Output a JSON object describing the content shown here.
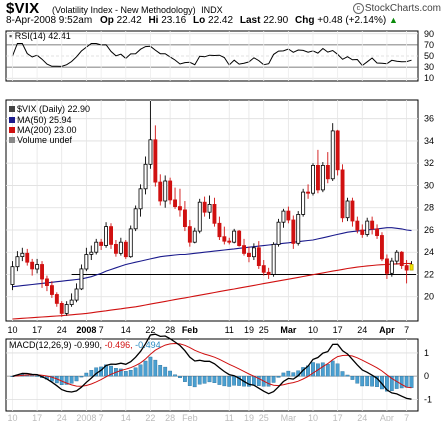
{
  "header": {
    "symbol": "$VIX",
    "name": "(Volatility Index - New Methodology)",
    "exchange": "INDX",
    "copyright": "StockCharts.com",
    "date": "8-Apr-2008 9:52am",
    "open_label": "Op",
    "open": "22.42",
    "high_label": "Hi",
    "high": "23.16",
    "low_label": "Lo",
    "low": "22.42",
    "last_label": "Last",
    "last": "22.90",
    "chg_label": "Chg",
    "chg": "+0.48 (+2.14%)",
    "up_arrow": "▲"
  },
  "rsi_panel": {
    "label": "RSI(14)",
    "value": "42.41",
    "ticks": [
      "90",
      "70",
      "50",
      "30",
      "10"
    ]
  },
  "price_panel": {
    "legend_title": "$VIX (Daily)",
    "legend_value": "22.90",
    "ma50_label": "MA(50)",
    "ma50_value": "25.94",
    "ma200_label": "MA(200)",
    "ma200_value": "23.00",
    "volume_label": "Volume undef",
    "ticks": [
      "36",
      "34",
      "32",
      "30",
      "28",
      "26",
      "24",
      "22",
      "20"
    ]
  },
  "macd_panel": {
    "label": "MACD(12,26,9)",
    "macd": "-0.990",
    "signal": "-0.496",
    "histogram": "-0.494",
    "ticks": [
      "1",
      "0",
      "-1"
    ]
  },
  "x_axis": {
    "labels": [
      "10",
      "17",
      "24",
      "2008",
      "7",
      "14",
      "22",
      "28",
      "Feb",
      "11",
      "19",
      "25",
      "Mar",
      "10",
      "17",
      "24",
      "Apr",
      "7"
    ]
  },
  "colors": {
    "ma50": "#1a1a8c",
    "ma200": "#d01010",
    "candle_up": "#000000",
    "candle_down": "#d01010",
    "macd_line": "#000000",
    "signal_line": "#d01010",
    "histogram": "#4a9fd0",
    "grid": "#cccccc"
  },
  "chart_data": {
    "type": "candlestick",
    "y_range": [
      18,
      37.5
    ],
    "horizontal_line": 22,
    "dates": [
      "2007-12-10",
      "2007-12-11",
      "2007-12-12",
      "2007-12-13",
      "2007-12-14",
      "2007-12-17",
      "2007-12-18",
      "2007-12-19",
      "2007-12-20",
      "2007-12-21",
      "2007-12-24",
      "2007-12-26",
      "2007-12-27",
      "2007-12-28",
      "2007-12-31",
      "2008-01-02",
      "2008-01-03",
      "2008-01-04",
      "2008-01-07",
      "2008-01-08",
      "2008-01-09",
      "2008-01-10",
      "2008-01-11",
      "2008-01-14",
      "2008-01-15",
      "2008-01-16",
      "2008-01-17",
      "2008-01-18",
      "2008-01-22",
      "2008-01-23",
      "2008-01-24",
      "2008-01-25",
      "2008-01-28",
      "2008-01-29",
      "2008-01-30",
      "2008-01-31",
      "2008-02-01",
      "2008-02-04",
      "2008-02-05",
      "2008-02-06",
      "2008-02-07",
      "2008-02-08",
      "2008-02-11",
      "2008-02-12",
      "2008-02-13",
      "2008-02-14",
      "2008-02-15",
      "2008-02-19",
      "2008-02-20",
      "2008-02-21",
      "2008-02-22",
      "2008-02-25",
      "2008-02-26",
      "2008-02-27",
      "2008-02-28",
      "2008-02-29",
      "2008-03-03",
      "2008-03-04",
      "2008-03-05",
      "2008-03-06",
      "2008-03-07",
      "2008-03-10",
      "2008-03-11",
      "2008-03-12",
      "2008-03-13",
      "2008-03-14",
      "2008-03-17",
      "2008-03-18",
      "2008-03-19",
      "2008-03-20",
      "2008-03-24",
      "2008-03-25",
      "2008-03-26",
      "2008-03-27",
      "2008-03-28",
      "2008-03-31",
      "2008-04-01",
      "2008-04-02",
      "2008-04-03",
      "2008-04-04",
      "2008-04-07",
      "2008-04-08"
    ],
    "ohlc": [
      [
        21.1,
        23.2,
        20.6,
        22.7
      ],
      [
        22.7,
        24.1,
        22.3,
        23.6
      ],
      [
        23.6,
        24.4,
        23.2,
        23.9
      ],
      [
        23.9,
        24.3,
        22.8,
        23.1
      ],
      [
        23.1,
        23.4,
        21.9,
        22.5
      ],
      [
        22.5,
        23.4,
        22.1,
        22.9
      ],
      [
        22.9,
        23.2,
        20.8,
        21.6
      ],
      [
        21.6,
        21.9,
        20.5,
        21.0
      ],
      [
        21.0,
        21.4,
        19.9,
        20.2
      ],
      [
        20.2,
        20.4,
        19.1,
        19.4
      ],
      [
        19.4,
        19.6,
        18.2,
        18.5
      ],
      [
        18.5,
        19.6,
        18.3,
        19.3
      ],
      [
        19.3,
        20.3,
        19.1,
        19.7
      ],
      [
        19.7,
        21.2,
        19.5,
        20.7
      ],
      [
        20.7,
        22.9,
        20.6,
        22.5
      ],
      [
        22.5,
        24.4,
        22.3,
        23.8
      ],
      [
        23.8,
        24.6,
        23.3,
        24.0
      ],
      [
        24.0,
        25.2,
        23.8,
        24.9
      ],
      [
        24.9,
        25.2,
        24.2,
        24.6
      ],
      [
        24.6,
        26.7,
        24.4,
        26.3
      ],
      [
        26.3,
        26.6,
        24.3,
        24.7
      ],
      [
        24.7,
        25.1,
        23.6,
        23.9
      ],
      [
        23.9,
        25.3,
        23.7,
        24.9
      ],
      [
        24.9,
        25.1,
        23.4,
        23.6
      ],
      [
        23.6,
        26.4,
        23.5,
        26.1
      ],
      [
        26.1,
        28.2,
        25.9,
        27.9
      ],
      [
        27.9,
        30.1,
        27.2,
        29.7
      ],
      [
        29.7,
        32.6,
        29.2,
        31.9
      ],
      [
        31.9,
        37.6,
        31.5,
        34.1
      ],
      [
        34.1,
        35.4,
        29.9,
        30.3
      ],
      [
        30.3,
        31.0,
        28.2,
        28.6
      ],
      [
        28.6,
        30.9,
        28.0,
        30.4
      ],
      [
        30.4,
        30.7,
        28.3,
        28.7
      ],
      [
        28.7,
        29.8,
        27.9,
        28.1
      ],
      [
        28.1,
        29.7,
        27.2,
        27.8
      ],
      [
        27.8,
        28.6,
        25.9,
        26.3
      ],
      [
        26.3,
        26.9,
        24.5,
        24.9
      ],
      [
        24.9,
        26.2,
        24.8,
        25.9
      ],
      [
        25.9,
        28.8,
        25.7,
        28.5
      ],
      [
        28.5,
        29.0,
        27.2,
        27.6
      ],
      [
        27.6,
        29.1,
        27.0,
        28.3
      ],
      [
        28.3,
        28.9,
        26.3,
        26.6
      ],
      [
        26.6,
        27.2,
        25.1,
        25.4
      ],
      [
        25.4,
        26.3,
        24.7,
        25.0
      ],
      [
        25.0,
        25.3,
        24.7,
        24.9
      ],
      [
        24.9,
        26.1,
        24.8,
        25.9
      ],
      [
        25.9,
        26.0,
        24.5,
        24.6
      ],
      [
        24.6,
        25.2,
        23.7,
        23.9
      ],
      [
        23.9,
        24.5,
        23.1,
        23.6
      ],
      [
        23.6,
        24.8,
        23.3,
        24.4
      ],
      [
        24.4,
        25.0,
        22.5,
        22.8
      ],
      [
        22.8,
        23.3,
        21.9,
        22.2
      ],
      [
        22.2,
        22.6,
        21.6,
        22.0
      ],
      [
        22.0,
        24.9,
        21.8,
        24.7
      ],
      [
        24.7,
        27.0,
        24.5,
        26.7
      ],
      [
        26.7,
        27.9,
        26.2,
        27.7
      ],
      [
        27.7,
        28.1,
        26.6,
        26.9
      ],
      [
        26.9,
        27.3,
        24.3,
        24.8
      ],
      [
        24.8,
        27.7,
        24.6,
        27.4
      ],
      [
        27.4,
        29.7,
        27.2,
        29.4
      ],
      [
        29.4,
        30.1,
        28.8,
        29.3
      ],
      [
        29.3,
        32.0,
        29.1,
        31.8
      ],
      [
        31.8,
        33.2,
        29.3,
        29.6
      ],
      [
        29.6,
        32.1,
        29.4,
        31.8
      ],
      [
        31.8,
        33.0,
        30.2,
        30.6
      ],
      [
        30.6,
        35.6,
        30.4,
        34.9
      ],
      [
        34.9,
        35.0,
        30.9,
        31.4
      ],
      [
        31.4,
        31.9,
        26.7,
        27.1
      ],
      [
        27.1,
        28.9,
        26.8,
        28.6
      ],
      [
        28.6,
        28.9,
        26.3,
        26.8
      ],
      [
        26.8,
        27.2,
        25.7,
        26.0
      ],
      [
        26.0,
        26.5,
        25.3,
        25.6
      ],
      [
        25.6,
        27.1,
        25.4,
        26.8
      ],
      [
        26.8,
        27.2,
        25.6,
        26.1
      ],
      [
        26.1,
        26.5,
        25.2,
        25.5
      ],
      [
        25.5,
        25.8,
        23.2,
        23.4
      ],
      [
        23.4,
        23.8,
        21.6,
        22.1
      ],
      [
        22.1,
        23.5,
        21.8,
        23.2
      ],
      [
        23.2,
        24.2,
        22.9,
        24.0
      ],
      [
        24.0,
        24.1,
        22.5,
        22.8
      ],
      [
        22.8,
        23.3,
        21.2,
        22.4
      ],
      [
        22.4,
        23.2,
        22.4,
        22.9
      ]
    ],
    "series": [
      {
        "name": "MA(50)",
        "values": [
          20.9,
          20.95,
          21.0,
          21.05,
          21.1,
          21.15,
          21.2,
          21.25,
          21.3,
          21.35,
          21.4,
          21.45,
          21.5,
          21.55,
          21.6,
          21.7,
          21.8,
          21.95,
          22.1,
          22.3,
          22.45,
          22.6,
          22.75,
          22.9,
          23.0,
          23.1,
          23.2,
          23.3,
          23.4,
          23.5,
          23.6,
          23.65,
          23.7,
          23.75,
          23.8,
          23.8,
          23.85,
          23.9,
          23.95,
          24.0,
          24.05,
          24.1,
          24.15,
          24.2,
          24.25,
          24.3,
          24.35,
          24.4,
          24.45,
          24.5,
          24.55,
          24.6,
          24.65,
          24.7,
          24.75,
          24.8,
          24.85,
          24.9,
          24.95,
          25.0,
          25.05,
          25.1,
          25.2,
          25.3,
          25.4,
          25.5,
          25.6,
          25.7,
          25.8,
          25.85,
          25.9,
          25.95,
          26.0,
          26.05,
          26.1,
          26.15,
          26.2,
          26.2,
          26.15,
          26.1,
          26.0,
          25.94
        ]
      },
      {
        "name": "MA(200)",
        "values": [
          18.0,
          18.03,
          18.06,
          18.09,
          18.12,
          18.15,
          18.18,
          18.21,
          18.24,
          18.27,
          18.3,
          18.34,
          18.38,
          18.42,
          18.46,
          18.5,
          18.56,
          18.62,
          18.68,
          18.74,
          18.8,
          18.86,
          18.92,
          18.98,
          19.04,
          19.1,
          19.18,
          19.26,
          19.34,
          19.42,
          19.5,
          19.58,
          19.66,
          19.74,
          19.82,
          19.9,
          19.98,
          20.06,
          20.14,
          20.22,
          20.3,
          20.38,
          20.46,
          20.54,
          20.62,
          20.7,
          20.78,
          20.86,
          20.94,
          21.02,
          21.1,
          21.18,
          21.26,
          21.34,
          21.42,
          21.5,
          21.58,
          21.66,
          21.74,
          21.82,
          21.9,
          21.98,
          22.06,
          22.14,
          22.22,
          22.3,
          22.38,
          22.46,
          22.54,
          22.6,
          22.66,
          22.72,
          22.77,
          22.81,
          22.85,
          22.88,
          22.9,
          22.93,
          22.95,
          22.97,
          22.99,
          23.0
        ]
      }
    ],
    "rsi": {
      "name": "RSI(14)",
      "range": [
        0,
        100
      ],
      "ticks": [
        90,
        70,
        50,
        30,
        10
      ],
      "current": 42.41
    },
    "macd": {
      "name": "MACD(12,26,9)",
      "range": [
        -1.5,
        1.6
      ],
      "macd": -0.99,
      "signal": -0.496,
      "histogram": -0.494
    }
  }
}
